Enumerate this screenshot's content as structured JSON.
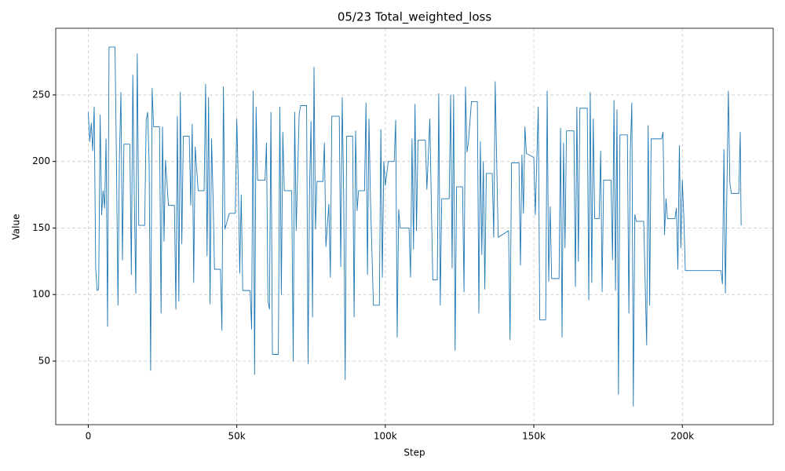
{
  "chart_data": {
    "type": "line",
    "title": "05/23  Total_weighted_loss",
    "xlabel": "Step",
    "ylabel": "Value",
    "color": "#1f77b4",
    "grid": true,
    "xlim": [
      -10950,
      230600
    ],
    "ylim": [
      2.2,
      300.1
    ],
    "xticks": [
      0,
      {
        "value": 50000,
        "label": "50k"
      },
      {
        "value": 100000,
        "label": "100k"
      },
      {
        "value": 150000,
        "label": "150k"
      },
      {
        "value": 200000,
        "label": "200k"
      }
    ],
    "yticks": [
      50,
      100,
      150,
      200,
      250
    ],
    "x": [
      0,
      500,
      1000,
      1500,
      2000,
      2500,
      3000,
      3500,
      4000,
      4500,
      5000,
      5500,
      6000,
      6500,
      7000,
      9000,
      9500,
      10000,
      10500,
      11000,
      11500,
      12000,
      14000,
      14500,
      15000,
      15500,
      16000,
      16500,
      17000,
      19000,
      19500,
      20000,
      20500,
      21000,
      21500,
      22000,
      24000,
      24500,
      25000,
      25500,
      26000,
      27000,
      29000,
      29500,
      30000,
      30500,
      31000,
      31500,
      32000,
      34000,
      34500,
      35000,
      35500,
      36000,
      37000,
      39000,
      39500,
      40000,
      40500,
      41000,
      41500,
      42000,
      42500,
      44500,
      45000,
      45500,
      46000,
      47500,
      49500,
      50000,
      50500,
      51000,
      51500,
      52000,
      54500,
      55000,
      55500,
      56000,
      56500,
      57000,
      59500,
      60000,
      60500,
      61000,
      61500,
      62000,
      64000,
      64500,
      65000,
      65500,
      66000,
      68500,
      69000,
      69500,
      70000,
      71000,
      71500,
      73500,
      74000,
      74500,
      75000,
      75500,
      76000,
      76500,
      77000,
      79000,
      79500,
      80000,
      81000,
      81500,
      82000,
      84500,
      85000,
      85500,
      86000,
      86500,
      87000,
      89000,
      89500,
      90000,
      90500,
      91000,
      93000,
      93500,
      94000,
      94500,
      95000,
      96000,
      98000,
      98500,
      99000,
      99500,
      100000,
      101000,
      103000,
      103500,
      104000,
      104500,
      105000,
      108000,
      108500,
      109000,
      109500,
      110000,
      110500,
      111000,
      113500,
      114000,
      115000,
      115500,
      116000,
      117500,
      118000,
      118500,
      119000,
      121500,
      122000,
      122500,
      123000,
      123500,
      124000,
      126000,
      126500,
      127000,
      127500,
      128000,
      129000,
      131000,
      131500,
      132000,
      132500,
      133000,
      133500,
      134000,
      136000,
      136500,
      137000,
      137500,
      138000,
      141500,
      142000,
      142500,
      145000,
      145500,
      146000,
      146500,
      147000,
      147500,
      150000,
      150500,
      151500,
      152000,
      154000,
      154500,
      155000,
      155500,
      156000,
      158500,
      159000,
      159500,
      160000,
      160500,
      161000,
      163500,
      164000,
      164500,
      165000,
      165500,
      168000,
      168500,
      169000,
      169500,
      170000,
      170500,
      172000,
      172500,
      173000,
      173500,
      176000,
      176500,
      177000,
      177500,
      178000,
      178500,
      179000,
      181500,
      182000,
      182500,
      183000,
      183500,
      184000,
      184500,
      187000,
      187500,
      188000,
      188500,
      189000,
      189500,
      193000,
      193500,
      194000,
      194500,
      195000,
      197500,
      198000,
      198500,
      199000,
      199500,
      200000,
      200500,
      201000,
      213000,
      213500,
      214000,
      214500,
      215500,
      216000,
      216500,
      219000,
      219500,
      219800
    ],
    "values": [
      237,
      215,
      229,
      208,
      241,
      120,
      103,
      104,
      235,
      160,
      178,
      165,
      217,
      76,
      286,
      286,
      200,
      92,
      204,
      252,
      126,
      213,
      213,
      115,
      265,
      174,
      101,
      281,
      152,
      152,
      231,
      237,
      198,
      43,
      255,
      226,
      226,
      86,
      226,
      140,
      201,
      167,
      167,
      89,
      234,
      95,
      252,
      138,
      219,
      219,
      167,
      228,
      109,
      211,
      178,
      178,
      258,
      129,
      248,
      93,
      217,
      175,
      119,
      119,
      73,
      256,
      149,
      161,
      161,
      232,
      186,
      116,
      175,
      103,
      103,
      74,
      253,
      40,
      241,
      186,
      186,
      214,
      95,
      89,
      237,
      55,
      55,
      241,
      100,
      222,
      178,
      178,
      50,
      237,
      148,
      235,
      242,
      242,
      48,
      180,
      230,
      83,
      271,
      149,
      185,
      185,
      214,
      136,
      168,
      113,
      234,
      234,
      121,
      248,
      173,
      36,
      219,
      219,
      83,
      223,
      163,
      178,
      178,
      244,
      115,
      232,
      172,
      92,
      92,
      224,
      113,
      200,
      182,
      200,
      200,
      231,
      68,
      164,
      150,
      150,
      113,
      217,
      134,
      243,
      148,
      216,
      216,
      179,
      232,
      168,
      111,
      111,
      251,
      92,
      172,
      172,
      250,
      120,
      250,
      58,
      181,
      181,
      102,
      256,
      207,
      215,
      245,
      245,
      86,
      215,
      130,
      200,
      104,
      191,
      191,
      143,
      260,
      200,
      143,
      148,
      66,
      199,
      199,
      122,
      205,
      161,
      226,
      206,
      203,
      160,
      241,
      81,
      81,
      253,
      110,
      166,
      112,
      112,
      225,
      68,
      214,
      135,
      223,
      223,
      106,
      241,
      125,
      240,
      240,
      96,
      252,
      109,
      232,
      157,
      157,
      208,
      102,
      186,
      186,
      126,
      246,
      103,
      239,
      25,
      220,
      220,
      86,
      208,
      244,
      16,
      160,
      155,
      155,
      108,
      62,
      227,
      92,
      217,
      217,
      222,
      145,
      172,
      157,
      157,
      165,
      119,
      212,
      135,
      186,
      159,
      118,
      118,
      108,
      209,
      101,
      253,
      184,
      176,
      176,
      222,
      152
    ]
  }
}
